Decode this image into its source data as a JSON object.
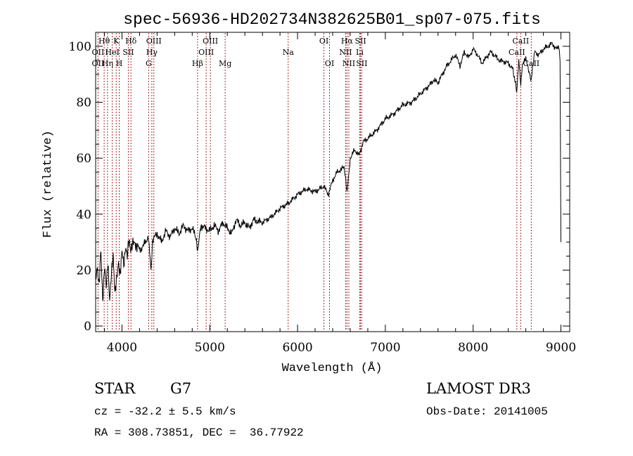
{
  "chart_data": {
    "type": "line",
    "title": "spec-56936-HD202734N382625B01_sp07-075.fits",
    "xlabel": "Wavelength (Å)",
    "ylabel": "Flux (relative)",
    "xlim": [
      3700,
      9100
    ],
    "ylim": [
      -2,
      105
    ],
    "xticks": [
      4000,
      5000,
      6000,
      7000,
      8000,
      9000
    ],
    "yticks": [
      0,
      20,
      40,
      60,
      80,
      100
    ],
    "series": [
      {
        "name": "spectrum",
        "x": [
          3700,
          3720,
          3740,
          3760,
          3780,
          3800,
          3820,
          3840,
          3860,
          3880,
          3900,
          3920,
          3940,
          3960,
          3980,
          4000,
          4020,
          4040,
          4060,
          4080,
          4100,
          4150,
          4200,
          4250,
          4300,
          4330,
          4350,
          4400,
          4450,
          4500,
          4550,
          4600,
          4650,
          4700,
          4750,
          4800,
          4850,
          4861,
          4900,
          4950,
          5000,
          5050,
          5100,
          5150,
          5200,
          5250,
          5300,
          5350,
          5400,
          5450,
          5500,
          5600,
          5700,
          5800,
          5900,
          6000,
          6100,
          6200,
          6300,
          6350,
          6400,
          6450,
          6500,
          6530,
          6563,
          6600,
          6650,
          6700,
          6750,
          6800,
          6900,
          7000,
          7100,
          7200,
          7300,
          7400,
          7500,
          7550,
          7600,
          7650,
          7700,
          7750,
          7800,
          7850,
          7900,
          7950,
          8000,
          8050,
          8100,
          8150,
          8200,
          8300,
          8400,
          8450,
          8498,
          8520,
          8542,
          8560,
          8600,
          8662,
          8700,
          8750,
          8800,
          8850,
          8900,
          8950,
          8980,
          8990,
          9000
        ],
        "values": [
          17,
          22,
          14,
          27,
          10,
          21,
          13,
          24,
          9,
          18,
          26,
          12,
          16,
          23,
          19,
          26,
          22,
          29,
          24,
          31,
          28,
          30,
          27,
          29,
          32,
          20,
          31,
          33,
          30,
          34,
          32,
          35,
          33,
          36,
          34,
          35,
          31,
          27,
          36,
          35,
          34,
          36,
          34,
          37,
          35,
          33,
          38,
          36,
          37,
          35,
          38,
          37,
          39,
          42,
          44,
          47,
          49,
          48,
          50,
          47,
          52,
          55,
          56,
          57,
          48,
          60,
          63,
          61,
          66,
          67,
          70,
          74,
          76,
          79,
          80,
          83,
          86,
          88,
          87,
          90,
          93,
          95,
          97,
          93,
          98,
          96,
          99,
          97,
          94,
          96,
          98,
          95,
          94,
          92,
          84,
          95,
          86,
          93,
          96,
          88,
          98,
          97,
          99,
          100,
          101,
          99,
          100,
          95,
          30
        ]
      }
    ],
    "lines": [
      {
        "label": "Hθ",
        "wave": 3797,
        "row": 0
      },
      {
        "label": "OII",
        "wave": 3727,
        "row": 1
      },
      {
        "label": "OII",
        "wave": 3727,
        "row": 2
      },
      {
        "label": "K",
        "wave": 3934,
        "row": 0
      },
      {
        "label": "HeI",
        "wave": 3889,
        "row": 1
      },
      {
        "label": "Hη",
        "wave": 3835,
        "row": 2
      },
      {
        "label": "Hδ",
        "wave": 4102,
        "row": 0
      },
      {
        "label": "SII",
        "wave": 4072,
        "row": 1
      },
      {
        "label": "H",
        "wave": 3969,
        "row": 2
      },
      {
        "label": "OIII",
        "wave": 4363,
        "row": 0
      },
      {
        "label": "Hγ",
        "wave": 4340,
        "row": 1
      },
      {
        "label": "G",
        "wave": 4304,
        "row": 2
      },
      {
        "label": "OIII",
        "wave": 5007,
        "row": 0
      },
      {
        "label": "OIII",
        "wave": 4959,
        "row": 1
      },
      {
        "label": "Hβ",
        "wave": 4861,
        "row": 2
      },
      {
        "label": "Mg",
        "wave": 5175,
        "row": 2
      },
      {
        "label": "Na",
        "wave": 5893,
        "row": 1
      },
      {
        "label": "OI",
        "wave": 6300,
        "row": 0
      },
      {
        "label": "OI",
        "wave": 6364,
        "row": 2
      },
      {
        "label": "Hα",
        "wave": 6563,
        "row": 0
      },
      {
        "label": "SII",
        "wave": 6717,
        "row": 0
      },
      {
        "label": "NII",
        "wave": 6548,
        "row": 1
      },
      {
        "label": "Li",
        "wave": 6708,
        "row": 1
      },
      {
        "label": "NII",
        "wave": 6584,
        "row": 2
      },
      {
        "label": "SII",
        "wave": 6731,
        "row": 2
      },
      {
        "label": "CaII",
        "wave": 8542,
        "row": 0
      },
      {
        "label": "CaII",
        "wave": 8498,
        "row": 1
      },
      {
        "label": "CaII",
        "wave": 8662,
        "row": 2
      }
    ],
    "line_waves": [
      3727,
      3797,
      3835,
      3889,
      3934,
      3969,
      4072,
      4102,
      4304,
      4340,
      4363,
      4861,
      4959,
      5007,
      5175,
      5893,
      6300,
      6364,
      6548,
      6563,
      6584,
      6708,
      6717,
      6731,
      8498,
      8542,
      8662
    ],
    "colors": {
      "axis": "#000000",
      "spectrum": "#000000",
      "lines": "#a52a2a"
    }
  },
  "info": {
    "class": "STAR",
    "subclass": "G7",
    "survey": "LAMOST DR3",
    "cz": "cz = -32.2 ± 5.5 km/s",
    "obs_date": "Obs-Date: 20141005",
    "radec": "RA = 308.73851, DEC =  36.77922"
  }
}
